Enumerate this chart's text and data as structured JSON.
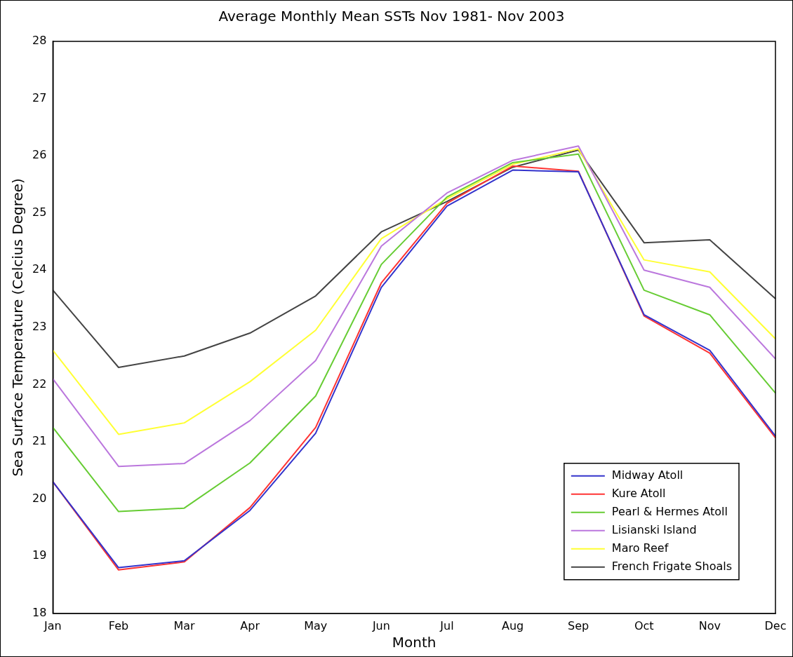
{
  "chart_data": {
    "type": "line",
    "title": "Average Monthly Mean SSTs Nov 1981- Nov 2003",
    "xlabel": "Month",
    "ylabel": "Sea Surface Temperature (Celcius Degree)",
    "categories": [
      "Jan",
      "Feb",
      "Mar",
      "Apr",
      "May",
      "Jun",
      "Jul",
      "Aug",
      "Sep",
      "Oct",
      "Nov",
      "Dec"
    ],
    "ylim": [
      18,
      28
    ],
    "yticks": [
      18,
      19,
      20,
      21,
      22,
      23,
      24,
      25,
      26,
      27,
      28
    ],
    "grid": false,
    "legend": "bottom right",
    "marker": "none",
    "line_style": "solid",
    "series": [
      {
        "name": "Midway Atoll",
        "color": "#3333cc",
        "values": [
          20.3,
          18.8,
          18.92,
          19.8,
          21.15,
          23.7,
          25.12,
          25.75,
          25.72,
          23.22,
          22.6,
          21.1
        ]
      },
      {
        "name": "Kure Atoll",
        "color": "#ff3333",
        "values": [
          20.3,
          18.76,
          18.9,
          19.85,
          21.25,
          23.78,
          25.17,
          25.82,
          25.73,
          23.2,
          22.55,
          21.07
        ]
      },
      {
        "name": "Pearl & Hermes Atoll",
        "color": "#66cc33",
        "values": [
          21.25,
          19.78,
          19.84,
          20.63,
          21.8,
          24.1,
          25.28,
          25.88,
          26.03,
          23.65,
          23.22,
          21.85
        ]
      },
      {
        "name": "Lisianski Island",
        "color": "#bb77dd",
        "values": [
          22.1,
          20.57,
          20.62,
          21.37,
          22.42,
          24.42,
          25.35,
          25.92,
          26.17,
          24.0,
          23.7,
          22.45
        ]
      },
      {
        "name": "Maro Reef",
        "color": "#ffff33",
        "values": [
          22.6,
          21.13,
          21.33,
          22.05,
          22.95,
          24.55,
          25.25,
          25.85,
          26.12,
          24.18,
          23.97,
          22.8
        ]
      },
      {
        "name": "French Frigate Shoals",
        "color": "#444444",
        "values": [
          23.65,
          22.3,
          22.5,
          22.9,
          23.55,
          24.67,
          25.2,
          25.8,
          26.1,
          24.48,
          24.53,
          23.5
        ]
      }
    ]
  }
}
